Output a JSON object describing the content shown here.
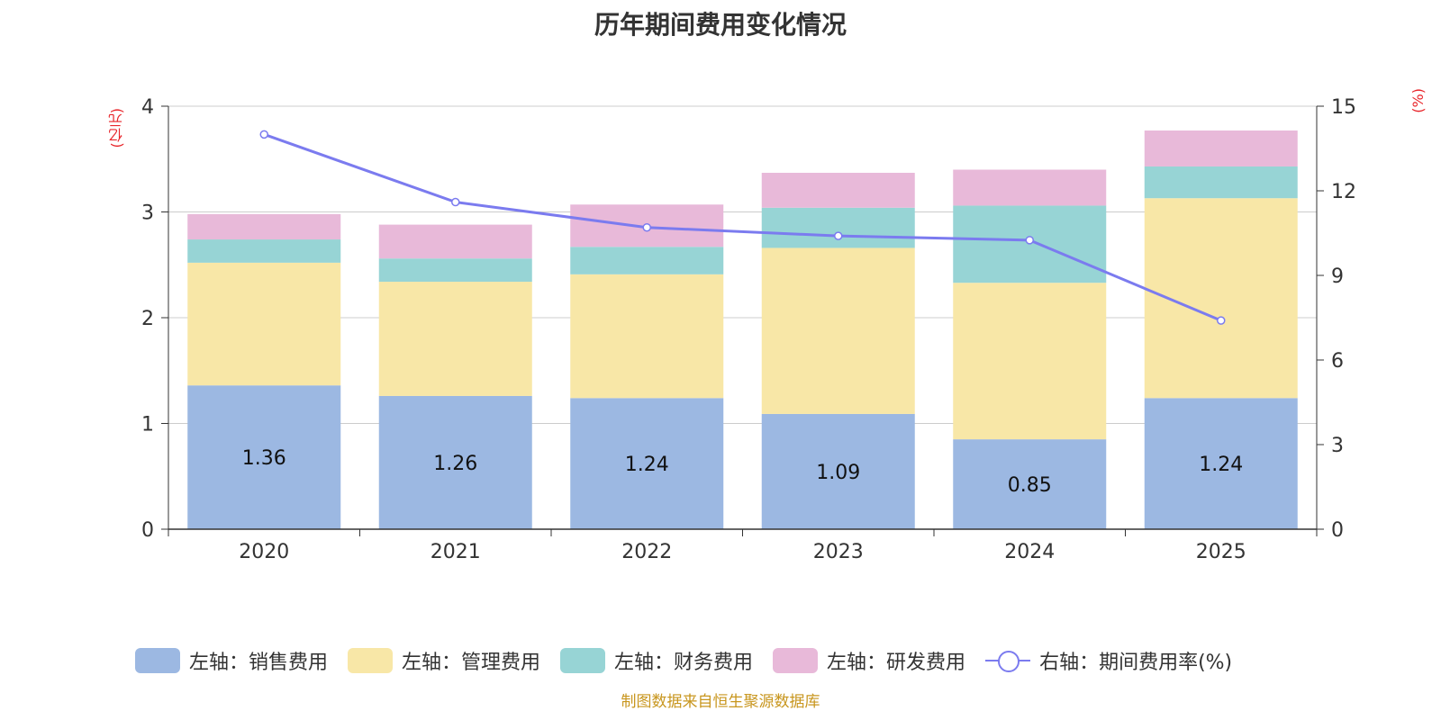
{
  "chart_data": {
    "type": "bar",
    "stacked": true,
    "title": "历年期间费用变化情况",
    "categories": [
      "2020",
      "2021",
      "2022",
      "2023",
      "2024",
      "2025"
    ],
    "left_axis": {
      "unit": "(亿元)",
      "ylim": [
        0,
        4
      ],
      "ticks": [
        "0",
        "1",
        "2",
        "3",
        "4"
      ]
    },
    "right_axis": {
      "unit": "(%)",
      "ylim": [
        0,
        15
      ],
      "ticks": [
        "0",
        "3",
        "6",
        "9",
        "12",
        "15"
      ]
    },
    "series": [
      {
        "name": "左轴：销售费用",
        "axis": "left",
        "color": "#9cb8e2",
        "values": [
          1.36,
          1.26,
          1.24,
          1.09,
          0.85,
          1.24
        ],
        "labels": [
          "1.36",
          "1.26",
          "1.24",
          "1.09",
          "0.85",
          "1.24"
        ]
      },
      {
        "name": "左轴：管理费用",
        "axis": "left",
        "color": "#f8e7a7",
        "values": [
          1.16,
          1.08,
          1.17,
          1.57,
          1.48,
          1.89
        ]
      },
      {
        "name": "左轴：财务费用",
        "axis": "left",
        "color": "#97d4d5",
        "values": [
          0.22,
          0.22,
          0.26,
          0.38,
          0.73,
          0.3
        ]
      },
      {
        "name": "左轴：研发费用",
        "axis": "left",
        "color": "#e8b9d9",
        "values": [
          0.24,
          0.32,
          0.4,
          0.33,
          0.34,
          0.34
        ]
      },
      {
        "name": "右轴：期间费用率(%)",
        "axis": "right",
        "type": "line",
        "color": "#7b7bef",
        "values": [
          14.0,
          11.6,
          10.7,
          10.4,
          10.25,
          7.4
        ]
      }
    ],
    "source": "制图数据来自恒生聚源数据库"
  }
}
